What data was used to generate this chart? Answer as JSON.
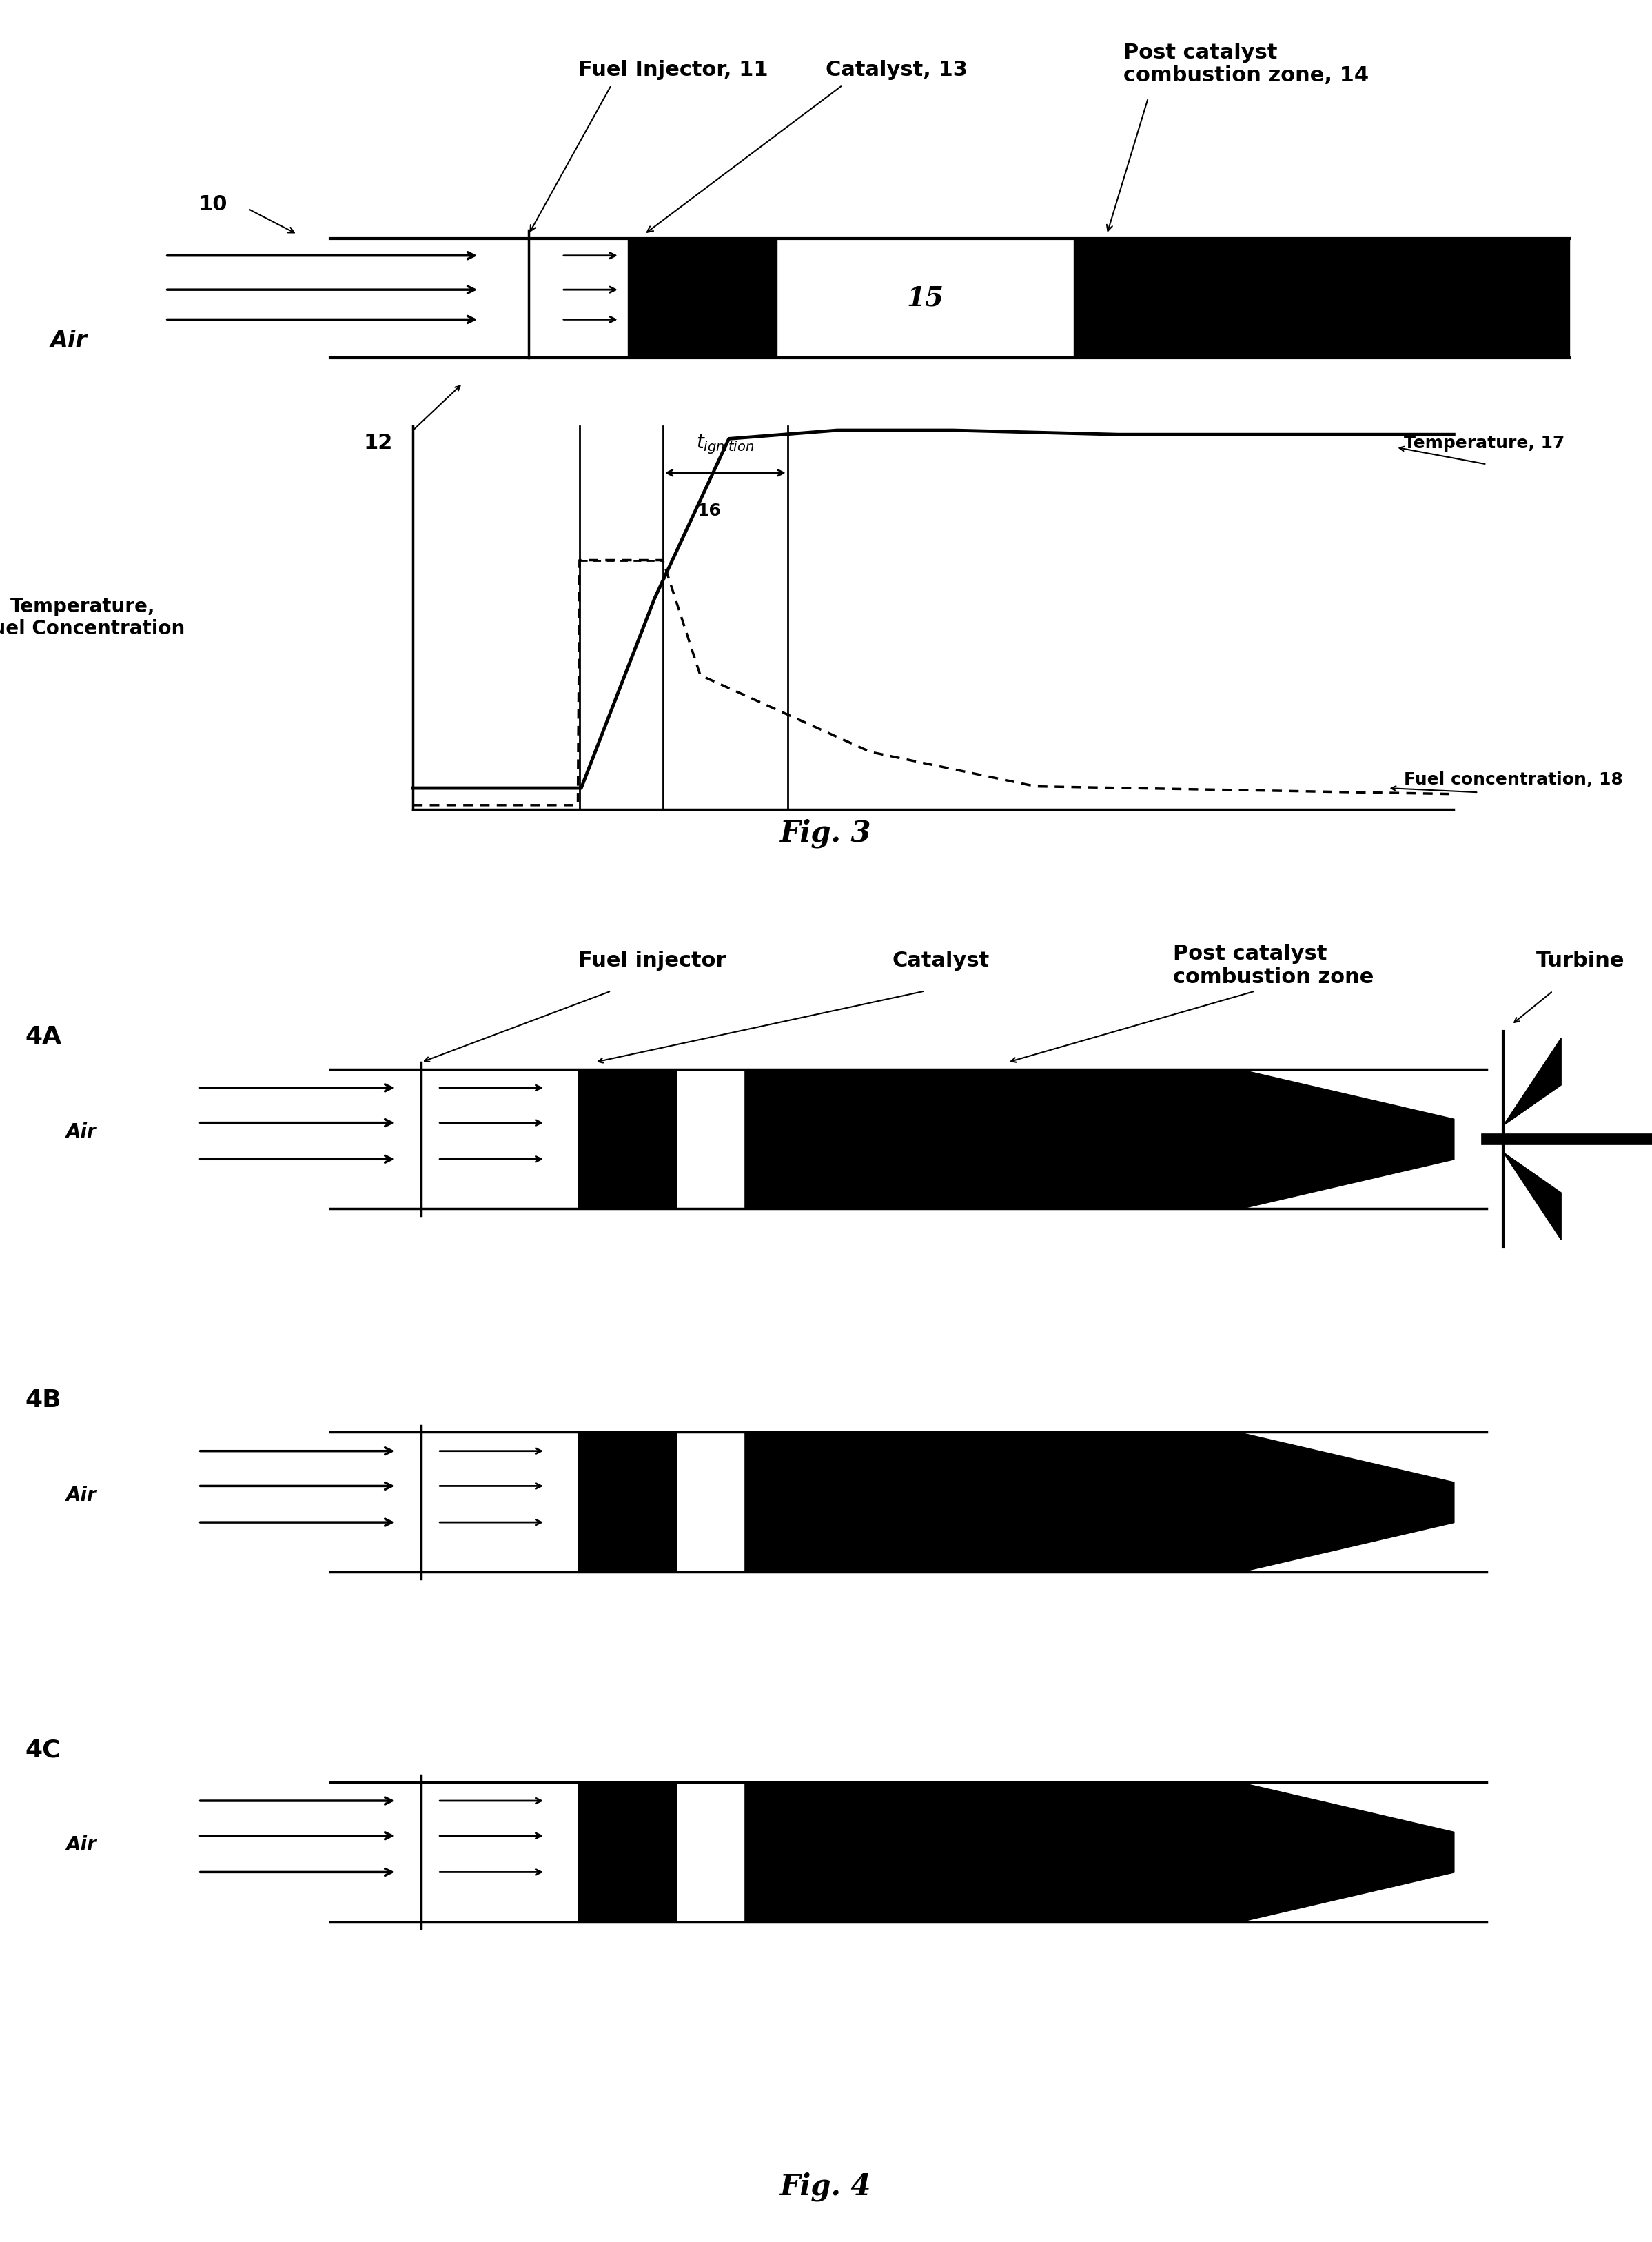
{
  "fig3_title": "Fig. 3",
  "fig4_title": "Fig. 4",
  "bg_color": "#ffffff",
  "black": "#000000",
  "label_10": "10",
  "label_12": "12",
  "label_15": "15",
  "label_16": "16",
  "label_fuel_injector_11": "Fuel Injector, 11",
  "label_catalyst_13": "Catalyst, 13",
  "label_post_catalyst_14": "Post catalyst\ncombustion zone, 14",
  "label_temp_fuel": "Temperature,\nFuel Concentration",
  "label_temp_17": "Temperature, 17",
  "label_fuel_conc_18": "Fuel concentration, 18",
  "label_tignition": "t",
  "label_ignition": "ignition",
  "label_air": "Air",
  "label_4A": "4A",
  "label_4B": "4B",
  "label_4C": "4C",
  "label_fuel_injector_4": "Fuel injector",
  "label_catalyst_4": "Catalyst",
  "label_post_catalyst_4": "Post catalyst\ncombustion zone",
  "label_turbine": "Turbine"
}
